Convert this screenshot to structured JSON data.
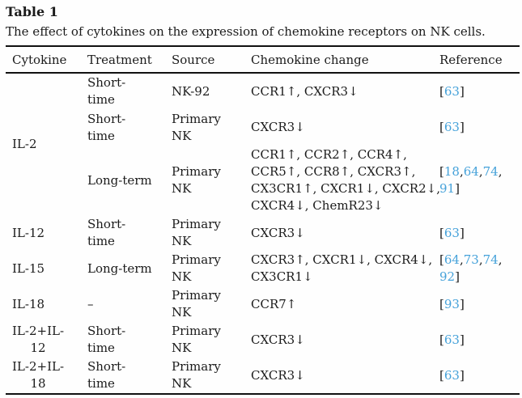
{
  "title": "Table 1",
  "caption": "The effect of cytokines on the expression of chemokine receptors on NK cells.",
  "colors": {
    "background": "#fefefe",
    "text": "#1b1b1b",
    "rule": "#111111",
    "link_blue": "#46a2da"
  },
  "columns": [
    "Cytokine",
    "Treatment",
    "Source",
    "Chemokine change",
    "Reference"
  ],
  "rows": [
    {
      "cytokine_lines": [
        "IL-2"
      ],
      "treatment_lines": [
        "Short-",
        "time"
      ],
      "source_lines": [
        "NK-92"
      ],
      "chemokine_lines": [
        "CCR1↑, CXCR3↓"
      ],
      "reference": {
        "numbers": [
          "63"
        ]
      }
    },
    {
      "treatment_lines": [
        "Short-",
        "time"
      ],
      "source_lines": [
        "Primary",
        "NK"
      ],
      "chemokine_lines": [
        "CXCR3↓"
      ],
      "reference": {
        "numbers": [
          "63"
        ]
      }
    },
    {
      "treatment_lines": [
        "Long-term"
      ],
      "source_lines": [
        "Primary",
        "NK"
      ],
      "chemokine_lines": [
        "CCR1↑, CCR2↑, CCR4↑,",
        "CCR5↑, CCR8↑, CXCR3↑,",
        "CX3CR1↑, CXCR1↓, CXCR2↓,",
        "CXCR4↓, ChemR23↓"
      ],
      "reference": {
        "numbers": [
          "18",
          "64",
          "74",
          "91"
        ],
        "break_after": 3
      }
    },
    {
      "cytokine_lines": [
        "IL-12"
      ],
      "treatment_lines": [
        "Short-",
        "time"
      ],
      "source_lines": [
        "Primary",
        "NK"
      ],
      "chemokine_lines": [
        "CXCR3↓"
      ],
      "reference": {
        "numbers": [
          "63"
        ]
      }
    },
    {
      "cytokine_lines": [
        "IL-15"
      ],
      "treatment_lines": [
        "Long-term"
      ],
      "source_lines": [
        "Primary",
        "NK"
      ],
      "chemokine_lines": [
        "CXCR3↑, CXCR1↓, CXCR4↓,",
        "CX3CR1↓"
      ],
      "reference": {
        "numbers": [
          "64",
          "73",
          "74",
          "92"
        ],
        "break_after": 3
      }
    },
    {
      "cytokine_lines": [
        "IL-18"
      ],
      "treatment_lines": [
        "–"
      ],
      "source_lines": [
        "Primary",
        "NK"
      ],
      "chemokine_lines": [
        "CCR7↑"
      ],
      "reference": {
        "numbers": [
          "93"
        ]
      }
    },
    {
      "cytokine_lines": [
        "IL-2+IL-",
        "12"
      ],
      "treatment_lines": [
        "Short-",
        "time"
      ],
      "source_lines": [
        "Primary",
        "NK"
      ],
      "chemokine_lines": [
        "CXCR3↓"
      ],
      "reference": {
        "numbers": [
          "63"
        ]
      }
    },
    {
      "cytokine_lines": [
        "IL-2+IL-",
        "18"
      ],
      "treatment_lines": [
        "Short-",
        "time"
      ],
      "source_lines": [
        "Primary",
        "NK"
      ],
      "chemokine_lines": [
        "CXCR3↓"
      ],
      "reference": {
        "numbers": [
          "63"
        ]
      }
    }
  ]
}
